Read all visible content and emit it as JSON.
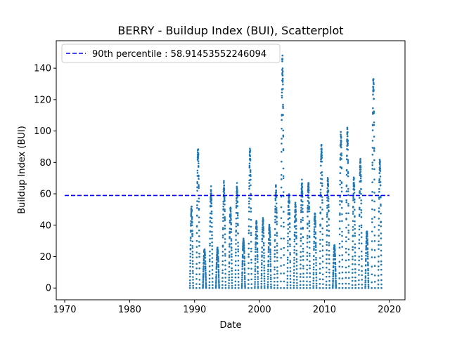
{
  "chart_data": {
    "type": "scatter",
    "title": "BERRY - Buildup Index (BUI), Scatterplot",
    "xlabel": "Date",
    "ylabel": "Buildup Index (BUI)",
    "xlim": [
      1968.7,
      2022.4
    ],
    "ylim": [
      -7.5,
      157.5
    ],
    "xticks": [
      1970,
      1980,
      1990,
      2000,
      2010,
      2020
    ],
    "yticks": [
      0,
      20,
      40,
      60,
      80,
      100,
      120,
      140
    ],
    "grid": false,
    "legend_position": "upper-left",
    "point_color": "#1f77b4",
    "reference_line": {
      "label": "90th percentile : 58.91453552246094",
      "value": 58.91453552246094,
      "x_range": [
        1970,
        2020
      ],
      "color": "#0000ff",
      "style": "dashed"
    },
    "series": [
      {
        "seasons": [
          {
            "year": 1989,
            "peak": 53
          },
          {
            "year": 1990,
            "peak": 92
          },
          {
            "year": 1991,
            "peak": 25
          },
          {
            "year": 1992,
            "peak": 65
          },
          {
            "year": 1993,
            "peak": 26
          },
          {
            "year": 1994,
            "peak": 69
          },
          {
            "year": 1995,
            "peak": 52
          },
          {
            "year": 1996,
            "peak": 68
          },
          {
            "year": 1997,
            "peak": 32
          },
          {
            "year": 1998,
            "peak": 90
          },
          {
            "year": 1999,
            "peak": 43
          },
          {
            "year": 2000,
            "peak": 45
          },
          {
            "year": 2001,
            "peak": 41
          },
          {
            "year": 2002,
            "peak": 66
          },
          {
            "year": 2003,
            "peak": 151
          },
          {
            "year": 2004,
            "peak": 62
          },
          {
            "year": 2005,
            "peak": 55
          },
          {
            "year": 2006,
            "peak": 70
          },
          {
            "year": 2007,
            "peak": 70
          },
          {
            "year": 2008,
            "peak": 48
          },
          {
            "year": 2009,
            "peak": 95
          },
          {
            "year": 2010,
            "peak": 72
          },
          {
            "year": 2011,
            "peak": 28
          },
          {
            "year": 2012,
            "peak": 101
          },
          {
            "year": 2013,
            "peak": 103
          },
          {
            "year": 2014,
            "peak": 72
          },
          {
            "year": 2015,
            "peak": 84
          },
          {
            "year": 2016,
            "peak": 37
          },
          {
            "year": 2017,
            "peak": 140
          },
          {
            "year": 2018,
            "peak": 84
          }
        ]
      }
    ]
  }
}
